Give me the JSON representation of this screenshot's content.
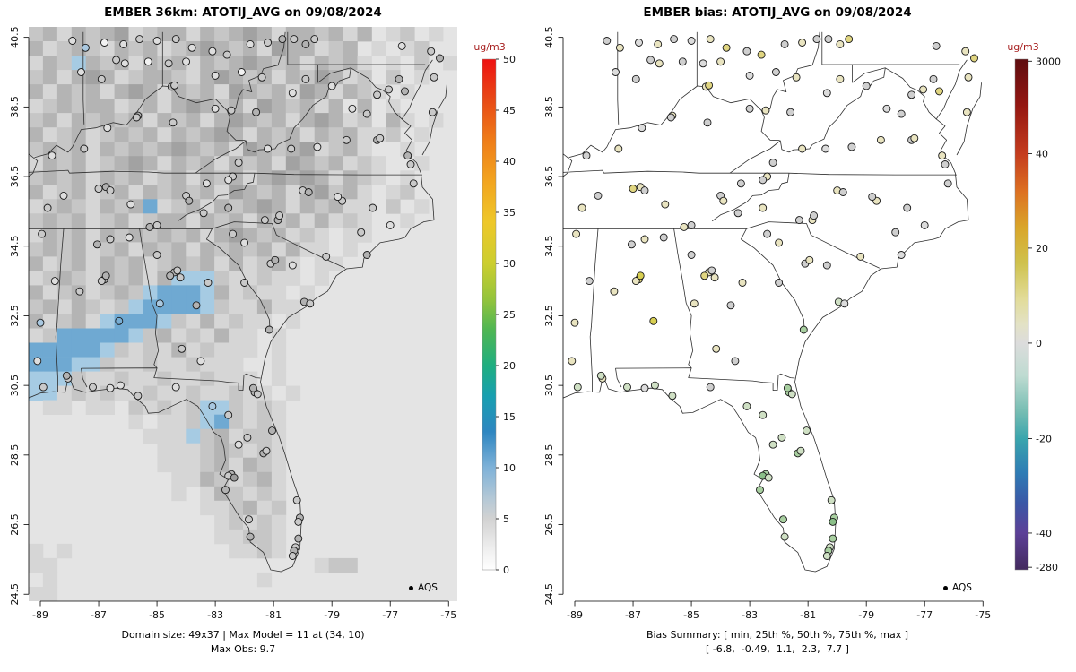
{
  "chart_data": [
    {
      "type": "heatmap",
      "title": "EMBER 36km: ATOTIJ_AVG on 09/08/2024",
      "footer1": "Domain size: 49x37 | Max Model = 11 at (34, 10)",
      "footer2": "Max Obs: 9.7",
      "legend": "AQS",
      "xlabel": "",
      "ylabel": "",
      "x_range": [
        -89.4,
        -74.7
      ],
      "y_range": [
        24.3,
        40.8
      ],
      "x_ticks": [
        "-89",
        "-87",
        "-85",
        "-83",
        "-81",
        "-79",
        "-77",
        "-75"
      ],
      "y_ticks": [
        "40.5",
        "38.5",
        "36.5",
        "34.5",
        "32.5",
        "30.5",
        "28.5",
        "26.5",
        "24.5"
      ],
      "domain_size": "49x37",
      "max_model": 11,
      "max_model_at": "(34, 10)",
      "max_obs": 9.7,
      "colorbar": {
        "label": "ug/m3",
        "ticks": [
          {
            "label": "50",
            "f": 0.0
          },
          {
            "label": "45",
            "f": 0.1
          },
          {
            "label": "40",
            "f": 0.2
          },
          {
            "label": "35",
            "f": 0.3
          },
          {
            "label": "30",
            "f": 0.4
          },
          {
            "label": "25",
            "f": 0.5
          },
          {
            "label": "20",
            "f": 0.6
          },
          {
            "label": "15",
            "f": 0.7
          },
          {
            "label": "10",
            "f": 0.8
          },
          {
            "label": "5",
            "f": 0.9
          },
          {
            "label": "0",
            "f": 1.0
          }
        ],
        "gradient": [
          [
            0,
            "#ee1111"
          ],
          [
            0.08,
            "#e84a16"
          ],
          [
            0.16,
            "#ef7d18"
          ],
          [
            0.24,
            "#f2a51f"
          ],
          [
            0.32,
            "#eec829"
          ],
          [
            0.4,
            "#ccce2f"
          ],
          [
            0.47,
            "#94c43c"
          ],
          [
            0.53,
            "#4fb653"
          ],
          [
            0.6,
            "#1fae80"
          ],
          [
            0.66,
            "#189fb0"
          ],
          [
            0.73,
            "#2e86c1"
          ],
          [
            0.8,
            "#7fb2d8"
          ],
          [
            0.86,
            "#b4c8d6"
          ],
          [
            0.9,
            "#d2d2d2"
          ],
          [
            0.96,
            "#efefef"
          ],
          [
            1,
            "#ffffff"
          ]
        ]
      },
      "grid": {
        "palette": {
          ".": "#e4e4e4",
          ",": "#d6d6d6",
          "a": "#c6c6c6",
          "b": "#b4b4b4",
          "c": "#a2a2a2",
          "L": "#a6cbe3",
          "B": "#6fa9d2"
        },
        "rows": [
          "ab,babc,abb,babcb,bbab,b.,a.,.",
          "b,aba,bab,abcbab,cbb,ab.,.,a..",
          ",baLbab,bab,babcbab,bab,.,.a.,",
          "ab,bcb,abba,bcbab,bacb,a.a.,..",
          "b,bab,bcb,bab,cbab,cb,ba,.,...",
          ",ababb,ab,bcbab,cbab,b.b.,....",
          "ab,babab,bab,bcbab,bcb,a.b,.,.",
          "b,ab,abab,babcb,bab,bab,,a.,..",
          "abab,bababcbab,cbabc,ab,..,...",
          ",bab,abcb,bab,bab,cbab,a,..,..",
          "abab,bab,ab,bab,bcbcb,ba,.,...",
          "b,ab,ab,babab,cbab,bcab,.,a...",
          ",aba,babB,ab,babcb,bab,,.a.,..",
          "abab,ab,abb,bab,bab,b,a,..,...",
          ",bab,bababab,bcbab,a,.,,......",
          "abab,ab,bab,babab,b,,.,.......",
          "b,ab,bab,abab,b,ab,.,,........",
          ",aba,bab,bLLLa,,a,,.,.........",
          "b,ab,abaLBBBLb,a,,.,..........",
          "ab,ba,aLBBBBLa,,b,,...........",
          "b,ab,LBBBLa,b,a,,.,...........",
          ",aBBBBBLab,a,b,,.,............",
          "BBBBBLa,a,b,a,,,.,............",
          "BBBLLa,,a,,a,,,..,............",
          "LLLa,,a,,a,,a,,,.,............",
          "LL,a,a,,a,,a,,a,,.,...........",
          ".,,.,,.a,a,aLLa,a,............",
          ".......,.,,aLBa,a,............",
          "........,,,Lab,aa,............",
          ".........,,,aba,a,............",
          ".........,,,ab,ba,............",
          "..........,,ba,ab,............",
          "..........,.,ba,a,............",
          "............,,ab,a............",
          ".............,a,a,............",
          ".............,,aa,............",
          ",.,...........,,a,............",
          ",,..................,aa.......",
          ".,..............,.............",
          ",,............................"
        ]
      }
    },
    {
      "type": "scatter",
      "title": "EMBER bias: ATOTIJ_AVG on 09/08/2024",
      "footer1": "Bias Summary: [ min, 25th %, 50th %, 75th %, max ]",
      "footer2": "[ -6.8,  -0.49,  1.1,  2.3,  7.7 ]",
      "legend": "AQS",
      "xlabel": "",
      "ylabel": "",
      "x_range": [
        -89.4,
        -74.7
      ],
      "y_range": [
        24.3,
        40.8
      ],
      "x_ticks": [
        "-89",
        "-87",
        "-85",
        "-83",
        "-81",
        "-79",
        "-77",
        "-75"
      ],
      "y_ticks": [
        "40.5",
        "38.5",
        "36.5",
        "34.5",
        "32.5",
        "30.5",
        "28.5",
        "26.5",
        "24.5"
      ],
      "bias_summary_labels": [
        "min",
        "25th %",
        "50th %",
        "75th %",
        "max"
      ],
      "bias_summary_values": [
        -6.8,
        -0.49,
        1.1,
        2.3,
        7.7
      ],
      "colorbar": {
        "label": "ug/m3",
        "ticks": [
          {
            "label": "3000",
            "f": 0.004
          },
          {
            "label": "40",
            "f": 0.185
          },
          {
            "label": "20",
            "f": 0.37
          },
          {
            "label": "0",
            "f": 0.556
          },
          {
            "label": "-20",
            "f": 0.743
          },
          {
            "label": "-40",
            "f": 0.928
          },
          {
            "label": "-280",
            "f": 0.995
          }
        ],
        "gradient": [
          [
            0,
            "#5e0d10"
          ],
          [
            0.09,
            "#941712"
          ],
          [
            0.185,
            "#c43c1e"
          ],
          [
            0.26,
            "#dd7122"
          ],
          [
            0.33,
            "#d9a62a"
          ],
          [
            0.4,
            "#cfc24e"
          ],
          [
            0.47,
            "#e2dc9a"
          ],
          [
            0.52,
            "#e3e2c6"
          ],
          [
            0.556,
            "#dcdcdc"
          ],
          [
            0.62,
            "#bedbd1"
          ],
          [
            0.69,
            "#76bdb3"
          ],
          [
            0.743,
            "#3aa5ad"
          ],
          [
            0.81,
            "#2f7cb5"
          ],
          [
            0.87,
            "#3b57a6"
          ],
          [
            0.928,
            "#5c4097"
          ],
          [
            1,
            "#432a5e"
          ]
        ]
      }
    }
  ],
  "stations": {
    "palette_model": [
      "#f2f2f2",
      "#dedede",
      "#c9c9c9",
      "#b2b2b2",
      "#9c9c9c",
      "#a9c8e0",
      "#79aed4"
    ],
    "palette_bias": [
      "#dcdcdc",
      "#cfcfcf",
      "#e9e4c0",
      "#e0d580",
      "#d8cf52",
      "#cfe0c4",
      "#a8cfa0",
      "#8abf88",
      "#efefef"
    ],
    "points": [
      [
        -87.9,
        40.4,
        1,
        1
      ],
      [
        -87.45,
        40.2,
        5,
        2
      ],
      [
        -86.8,
        40.35,
        0,
        0
      ],
      [
        -86.15,
        40.3,
        1,
        2
      ],
      [
        -85.6,
        40.45,
        2,
        1
      ],
      [
        -85.0,
        40.4,
        1,
        0
      ],
      [
        -84.35,
        40.45,
        2,
        2
      ],
      [
        -83.8,
        40.2,
        1,
        3
      ],
      [
        -83.1,
        40.1,
        1,
        1
      ],
      [
        -82.6,
        40.0,
        2,
        3
      ],
      [
        -81.8,
        40.3,
        1,
        1
      ],
      [
        -81.2,
        40.35,
        2,
        2
      ],
      [
        -80.7,
        40.45,
        3,
        1
      ],
      [
        -80.3,
        40.45,
        2,
        1
      ],
      [
        -79.9,
        40.3,
        3,
        2
      ],
      [
        -79.6,
        40.45,
        2,
        3
      ],
      [
        -76.6,
        40.25,
        1,
        1
      ],
      [
        -75.6,
        40.1,
        2,
        2
      ],
      [
        -75.3,
        39.9,
        3,
        3
      ],
      [
        -86.4,
        39.85,
        2,
        1
      ],
      [
        -86.1,
        39.75,
        1,
        2
      ],
      [
        -85.3,
        39.8,
        0,
        1
      ],
      [
        -84.6,
        39.75,
        2,
        0
      ],
      [
        -84.0,
        39.8,
        1,
        2
      ],
      [
        -87.6,
        39.5,
        1,
        0
      ],
      [
        -86.9,
        39.3,
        2,
        1
      ],
      [
        -83.0,
        39.4,
        1,
        0
      ],
      [
        -82.1,
        39.5,
        0,
        1
      ],
      [
        -81.4,
        39.35,
        2,
        2
      ],
      [
        -75.5,
        39.35,
        2,
        2
      ],
      [
        -76.7,
        39.3,
        3,
        1
      ],
      [
        -79.9,
        39.3,
        2,
        2
      ],
      [
        -79.0,
        39.1,
        1,
        1
      ],
      [
        -84.5,
        39.08,
        3,
        2
      ],
      [
        -84.4,
        39.12,
        2,
        3
      ],
      [
        -85.65,
        38.25,
        3,
        2
      ],
      [
        -85.7,
        38.2,
        2,
        1
      ],
      [
        -84.45,
        38.05,
        2,
        1
      ],
      [
        -83.0,
        38.45,
        1,
        1
      ],
      [
        -82.45,
        38.4,
        2,
        2
      ],
      [
        -81.6,
        38.35,
        3,
        1
      ],
      [
        -80.35,
        38.9,
        1,
        0
      ],
      [
        -78.3,
        38.45,
        1,
        0
      ],
      [
        -77.8,
        38.3,
        2,
        1
      ],
      [
        -77.05,
        39.0,
        2,
        2
      ],
      [
        -76.5,
        38.95,
        3,
        3
      ],
      [
        -77.45,
        38.85,
        2,
        1
      ],
      [
        -75.55,
        38.35,
        2,
        2
      ],
      [
        -88.6,
        37.1,
        1,
        1
      ],
      [
        -87.5,
        37.3,
        2,
        2
      ],
      [
        -86.7,
        37.9,
        1,
        0
      ],
      [
        -82.2,
        36.9,
        2,
        1
      ],
      [
        -81.2,
        37.3,
        1,
        2
      ],
      [
        -80.4,
        37.3,
        2,
        0
      ],
      [
        -79.5,
        37.35,
        1,
        1
      ],
      [
        -78.5,
        37.55,
        2,
        2
      ],
      [
        -77.45,
        37.55,
        3,
        1
      ],
      [
        -77.35,
        37.6,
        2,
        2
      ],
      [
        -76.4,
        37.1,
        3,
        2
      ],
      [
        -76.3,
        36.85,
        2,
        1
      ],
      [
        -88.75,
        35.6,
        2,
        2
      ],
      [
        -88.2,
        35.95,
        1,
        1
      ],
      [
        -87.0,
        36.15,
        2,
        3
      ],
      [
        -86.75,
        36.2,
        3,
        2
      ],
      [
        -86.6,
        36.1,
        2,
        1
      ],
      [
        -85.9,
        35.7,
        1,
        2
      ],
      [
        -85.0,
        35.1,
        2,
        1
      ],
      [
        -85.25,
        35.05,
        3,
        2
      ],
      [
        -84.0,
        35.95,
        2,
        1
      ],
      [
        -83.9,
        35.8,
        3,
        2
      ],
      [
        -83.3,
        36.3,
        1,
        1
      ],
      [
        -82.4,
        36.5,
        2,
        2
      ],
      [
        -82.55,
        36.4,
        1,
        1
      ],
      [
        -83.4,
        35.45,
        2,
        1
      ],
      [
        -82.55,
        35.6,
        3,
        2
      ],
      [
        -81.3,
        35.25,
        2,
        1
      ],
      [
        -80.85,
        35.25,
        3,
        2
      ],
      [
        -80.8,
        35.38,
        2,
        1
      ],
      [
        -80.0,
        36.1,
        2,
        2
      ],
      [
        -79.8,
        36.05,
        3,
        1
      ],
      [
        -78.65,
        35.8,
        2,
        2
      ],
      [
        -78.8,
        35.92,
        1,
        1
      ],
      [
        -77.6,
        35.6,
        2,
        1
      ],
      [
        -77.0,
        35.1,
        1,
        0
      ],
      [
        -76.2,
        36.3,
        2,
        1
      ],
      [
        -77.8,
        34.25,
        3,
        0
      ],
      [
        -78.0,
        34.9,
        2,
        1
      ],
      [
        -82.4,
        34.85,
        2,
        1
      ],
      [
        -82.0,
        34.6,
        1,
        2
      ],
      [
        -81.1,
        34.0,
        2,
        1
      ],
      [
        -80.95,
        34.1,
        3,
        2
      ],
      [
        -79.95,
        32.9,
        3,
        5
      ],
      [
        -79.75,
        32.85,
        2,
        0
      ],
      [
        -80.35,
        33.95,
        1,
        1
      ],
      [
        -79.2,
        34.2,
        2,
        2
      ],
      [
        -84.4,
        33.75,
        3,
        2
      ],
      [
        -84.3,
        33.8,
        2,
        1
      ],
      [
        -84.55,
        33.65,
        3,
        3
      ],
      [
        -84.2,
        33.6,
        2,
        2
      ],
      [
        -85.0,
        34.25,
        2,
        1
      ],
      [
        -84.9,
        32.85,
        5,
        2
      ],
      [
        -83.65,
        32.8,
        3,
        1
      ],
      [
        -83.25,
        33.45,
        2,
        2
      ],
      [
        -82.0,
        33.45,
        2,
        1
      ],
      [
        -81.15,
        32.1,
        3,
        6
      ],
      [
        -83.5,
        31.2,
        1,
        1
      ],
      [
        -84.15,
        31.55,
        2,
        2
      ],
      [
        -86.8,
        33.55,
        3,
        3
      ],
      [
        -86.9,
        33.5,
        2,
        2
      ],
      [
        -86.75,
        33.65,
        3,
        4
      ],
      [
        -86.3,
        32.35,
        6,
        4
      ],
      [
        -87.65,
        33.2,
        2,
        2
      ],
      [
        -85.95,
        34.75,
        1,
        1
      ],
      [
        -86.6,
        34.7,
        2,
        2
      ],
      [
        -87.05,
        34.55,
        3,
        1
      ],
      [
        -88.05,
        30.7,
        2,
        2
      ],
      [
        -88.1,
        30.78,
        3,
        5
      ],
      [
        -88.95,
        34.85,
        2,
        2
      ],
      [
        -88.5,
        33.5,
        1,
        1
      ],
      [
        -89.0,
        32.3,
        5,
        2
      ],
      [
        -88.9,
        30.45,
        2,
        5
      ],
      [
        -89.1,
        31.2,
        1,
        2
      ],
      [
        -87.2,
        30.45,
        2,
        5
      ],
      [
        -86.6,
        30.42,
        1,
        0
      ],
      [
        -86.25,
        30.5,
        1,
        5
      ],
      [
        -85.65,
        30.2,
        2,
        5
      ],
      [
        -84.35,
        30.45,
        1,
        1
      ],
      [
        -83.1,
        29.9,
        5,
        5
      ],
      [
        -82.55,
        29.65,
        2,
        5
      ],
      [
        -81.65,
        30.3,
        3,
        6
      ],
      [
        -81.55,
        30.25,
        2,
        5
      ],
      [
        -81.7,
        30.42,
        3,
        6
      ],
      [
        -81.05,
        29.2,
        3,
        5
      ],
      [
        -81.9,
        29.0,
        2,
        5
      ],
      [
        -82.2,
        28.8,
        1,
        5
      ],
      [
        -81.35,
        28.55,
        3,
        6
      ],
      [
        -81.25,
        28.62,
        2,
        5
      ],
      [
        -82.45,
        27.95,
        3,
        6
      ],
      [
        -82.55,
        27.9,
        2,
        7
      ],
      [
        -82.65,
        27.5,
        3,
        6
      ],
      [
        -82.35,
        27.85,
        4,
        5
      ],
      [
        -81.85,
        26.65,
        2,
        6
      ],
      [
        -81.8,
        26.15,
        3,
        5
      ],
      [
        -80.2,
        27.2,
        2,
        5
      ],
      [
        -80.1,
        26.7,
        3,
        6
      ],
      [
        -80.15,
        26.58,
        2,
        7
      ],
      [
        -80.15,
        26.1,
        3,
        6
      ],
      [
        -80.25,
        25.85,
        2,
        5
      ],
      [
        -80.3,
        25.75,
        3,
        6
      ],
      [
        -80.35,
        25.6,
        2,
        5
      ]
    ]
  }
}
